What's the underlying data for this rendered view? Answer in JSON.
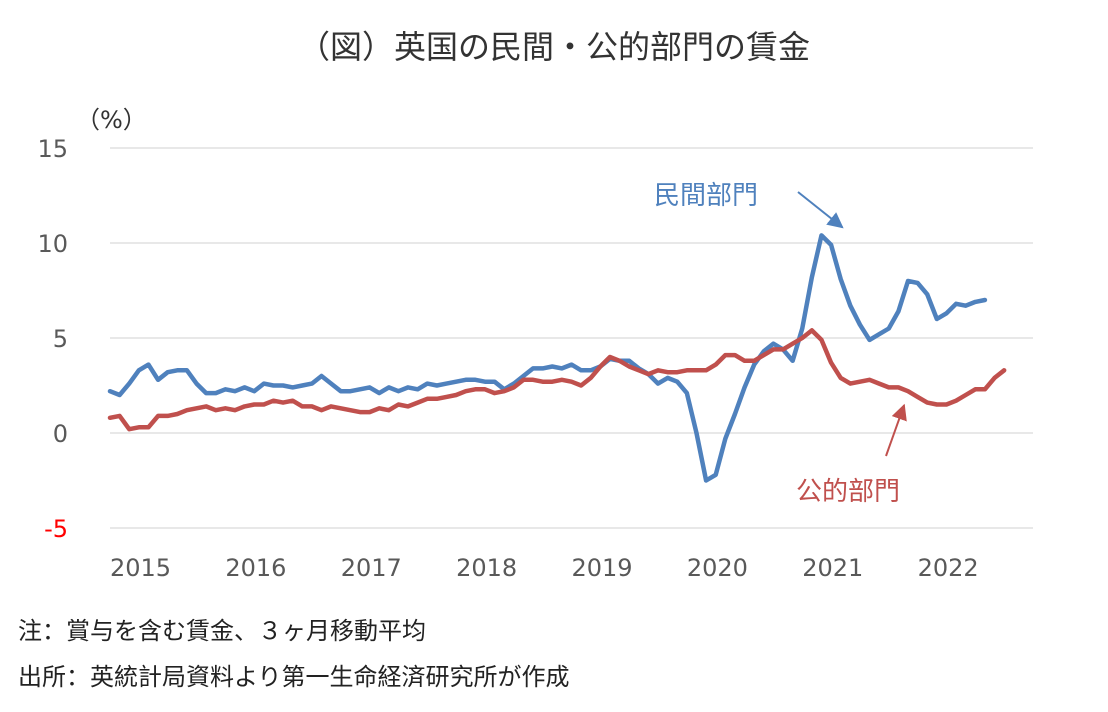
{
  "chart_data": {
    "type": "line",
    "title": "（図）英国の民間・公的部門の賃金",
    "ylabel": "（%）",
    "ylim": [
      -5,
      15
    ],
    "yticks": [
      15,
      10,
      5,
      0,
      -5
    ],
    "ytick_labels": [
      "15",
      "10",
      "5",
      "0",
      "-5"
    ],
    "negative_tick_color": "#ff0000",
    "grid": true,
    "xlim": [
      2015.0,
      2023.0
    ],
    "x_tick_labels": [
      "2015",
      "2016",
      "2017",
      "2018",
      "2019",
      "2020",
      "2021",
      "2022"
    ],
    "series": [
      {
        "name": "民間部門",
        "color": "#4f81bd",
        "label_text": "民間部門",
        "values": [
          2.2,
          2.0,
          2.6,
          3.3,
          3.6,
          2.8,
          3.2,
          3.3,
          3.3,
          2.6,
          2.1,
          2.1,
          2.3,
          2.2,
          2.4,
          2.2,
          2.6,
          2.5,
          2.5,
          2.4,
          2.5,
          2.6,
          3.0,
          2.6,
          2.2,
          2.2,
          2.3,
          2.4,
          2.1,
          2.4,
          2.2,
          2.4,
          2.3,
          2.6,
          2.5,
          2.6,
          2.7,
          2.8,
          2.8,
          2.7,
          2.7,
          2.3,
          2.6,
          3.0,
          3.4,
          3.4,
          3.5,
          3.4,
          3.6,
          3.3,
          3.3,
          3.5,
          3.9,
          3.8,
          3.8,
          3.4,
          3.1,
          2.6,
          2.9,
          2.7,
          2.1,
          0.0,
          -2.5,
          -2.2,
          -0.3,
          1.0,
          2.4,
          3.6,
          4.3,
          4.7,
          4.4,
          3.8,
          5.5,
          8.2,
          10.4,
          9.9,
          8.1,
          6.7,
          5.7,
          4.9,
          5.2,
          5.5,
          6.4,
          8.0,
          7.9,
          7.3,
          6.0,
          6.3,
          6.8,
          6.7,
          6.9,
          7.0
        ]
      },
      {
        "name": "公的部門",
        "color": "#c0504d",
        "label_text": "公的部門",
        "values": [
          0.8,
          0.9,
          0.2,
          0.3,
          0.3,
          0.9,
          0.9,
          1.0,
          1.2,
          1.3,
          1.4,
          1.2,
          1.3,
          1.2,
          1.4,
          1.5,
          1.5,
          1.7,
          1.6,
          1.7,
          1.4,
          1.4,
          1.2,
          1.4,
          1.3,
          1.2,
          1.1,
          1.1,
          1.3,
          1.2,
          1.5,
          1.4,
          1.6,
          1.8,
          1.8,
          1.9,
          2.0,
          2.2,
          2.3,
          2.3,
          2.1,
          2.2,
          2.4,
          2.8,
          2.8,
          2.7,
          2.7,
          2.8,
          2.7,
          2.5,
          2.9,
          3.5,
          4.0,
          3.8,
          3.5,
          3.3,
          3.1,
          3.3,
          3.2,
          3.2,
          3.3,
          3.3,
          3.3,
          3.6,
          4.1,
          4.1,
          3.8,
          3.8,
          4.1,
          4.4,
          4.4,
          4.7,
          5.0,
          5.4,
          4.9,
          3.7,
          2.9,
          2.6,
          2.7,
          2.8,
          2.6,
          2.4,
          2.4,
          2.2,
          1.9,
          1.6,
          1.5,
          1.5,
          1.7,
          2.0,
          2.3,
          2.3,
          2.9,
          3.3
        ]
      }
    ],
    "annotations": [
      {
        "text": "民間部門",
        "series": "民間部門",
        "point_at": [
          2021.4,
          10.4
        ]
      },
      {
        "text": "公的部門",
        "series": "公的部門",
        "point_at": [
          2021.9,
          2.2
        ]
      }
    ]
  },
  "notes": {
    "line1": "注：賞与を含む賃金、３ヶ月移動平均",
    "line2": "出所：英統計局資料より第一生命経済研究所が作成"
  }
}
